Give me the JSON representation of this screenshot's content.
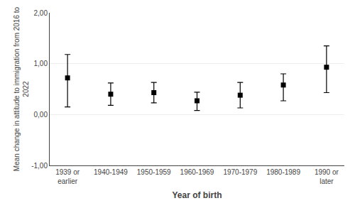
{
  "chart_data": {
    "type": "scatter",
    "marker": "square",
    "color": "#000000",
    "categories": [
      "1939 or\nearlier",
      "1940-1949",
      "1950-1959",
      "1960-1969",
      "1970-1979",
      "1980-1989",
      "1990 or\nlater"
    ],
    "values": [
      0.72,
      0.4,
      0.43,
      0.27,
      0.38,
      0.58,
      0.93
    ],
    "error_minus": [
      0.57,
      0.22,
      0.2,
      0.19,
      0.25,
      0.31,
      0.5
    ],
    "error_plus": [
      0.46,
      0.22,
      0.2,
      0.17,
      0.25,
      0.22,
      0.42
    ],
    "xlabel": "Year of birth",
    "ylabel": "Mean change in attitude to immigration from 2016 to\n2022",
    "ylim": [
      -1.0,
      2.0
    ],
    "yticks": [
      {
        "value": -1.0,
        "label": "-1,00"
      },
      {
        "value": 0.0,
        "label": "0,00"
      },
      {
        "value": 1.0,
        "label": "1,00"
      },
      {
        "value": 2.0,
        "label": "2,00"
      }
    ],
    "grid": true
  }
}
